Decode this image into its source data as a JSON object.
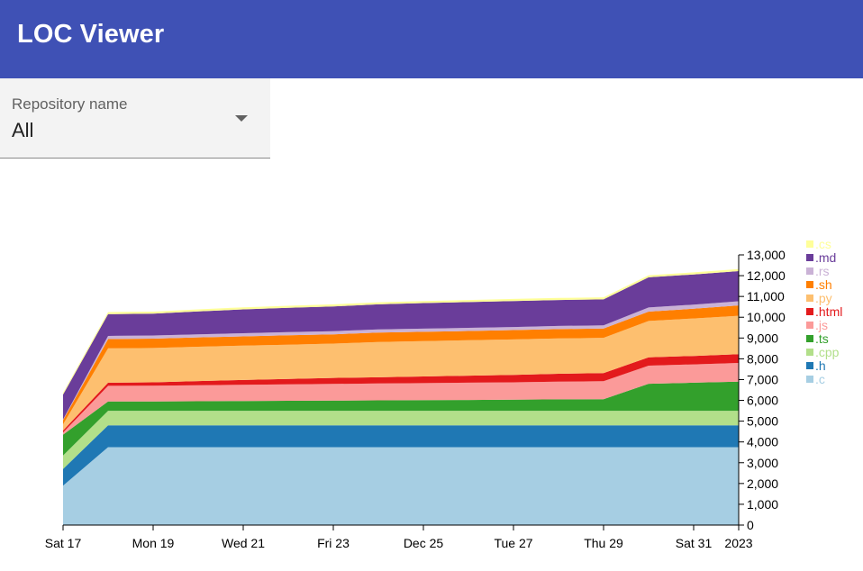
{
  "app": {
    "title": "LOC Viewer"
  },
  "repo_select": {
    "label": "Repository name",
    "value": "All"
  },
  "chart_data": {
    "type": "area",
    "stacked": true,
    "x": [
      "2022-12-17",
      "2022-12-18",
      "2022-12-19",
      "2022-12-20",
      "2022-12-21",
      "2022-12-22",
      "2022-12-23",
      "2022-12-24",
      "2022-12-25",
      "2022-12-26",
      "2022-12-27",
      "2022-12-28",
      "2022-12-29",
      "2022-12-30",
      "2022-12-31",
      "2023-01-01"
    ],
    "x_ticks": [
      "Sat 17",
      "Mon 19",
      "Wed 21",
      "Fri 23",
      "Dec 25",
      "Tue 27",
      "Thu 29",
      "Sat 31",
      "2023"
    ],
    "y_ticks": [
      "0",
      "1,000",
      "2,000",
      "3,000",
      "4,000",
      "5,000",
      "6,000",
      "7,000",
      "8,000",
      "9,000",
      "10,000",
      "11,000",
      "12,000",
      "13,000"
    ],
    "ylim": [
      0,
      13000
    ],
    "legend_position": "right",
    "series": [
      {
        "name": ".c",
        "color": "#a6cee3",
        "values": [
          1900,
          3750,
          3750,
          3750,
          3750,
          3750,
          3750,
          3750,
          3750,
          3750,
          3750,
          3750,
          3750,
          3750,
          3750,
          3750
        ]
      },
      {
        "name": ".h",
        "color": "#1f78b4",
        "values": [
          800,
          1050,
          1050,
          1050,
          1050,
          1050,
          1050,
          1050,
          1050,
          1050,
          1050,
          1050,
          1050,
          1050,
          1050,
          1050
        ]
      },
      {
        "name": ".cpp",
        "color": "#b2df8a",
        "values": [
          650,
          700,
          700,
          700,
          700,
          700,
          700,
          700,
          700,
          700,
          700,
          700,
          700,
          700,
          700,
          700
        ]
      },
      {
        "name": ".ts",
        "color": "#33a02c",
        "values": [
          1000,
          450,
          450,
          460,
          470,
          480,
          490,
          500,
          510,
          520,
          530,
          550,
          560,
          1300,
          1350,
          1400
        ]
      },
      {
        "name": ".js",
        "color": "#fb9a99",
        "values": [
          100,
          750,
          760,
          770,
          780,
          790,
          800,
          810,
          820,
          830,
          840,
          850,
          860,
          870,
          880,
          900
        ]
      },
      {
        "name": ".html",
        "color": "#e31a1c",
        "values": [
          100,
          150,
          160,
          200,
          230,
          260,
          290,
          300,
          320,
          340,
          360,
          380,
          390,
          400,
          410,
          420
        ]
      },
      {
        "name": ".py",
        "color": "#fdbf6f",
        "values": [
          300,
          1650,
          1650,
          1650,
          1650,
          1650,
          1650,
          1700,
          1700,
          1700,
          1700,
          1700,
          1700,
          1750,
          1800,
          1850
        ]
      },
      {
        "name": ".sh",
        "color": "#ff7f00",
        "values": [
          200,
          450,
          450,
          450,
          450,
          450,
          450,
          450,
          450,
          450,
          450,
          450,
          450,
          450,
          470,
          500
        ]
      },
      {
        "name": ".rs",
        "color": "#cab2d6",
        "values": [
          30,
          150,
          150,
          150,
          150,
          150,
          150,
          150,
          150,
          150,
          150,
          150,
          150,
          200,
          200,
          200
        ]
      },
      {
        "name": ".md",
        "color": "#6a3d9a",
        "values": [
          1200,
          1050,
          1050,
          1100,
          1150,
          1170,
          1190,
          1210,
          1230,
          1240,
          1250,
          1250,
          1250,
          1450,
          1450,
          1450
        ]
      },
      {
        "name": ".cs",
        "color": "#ffff99",
        "values": [
          80,
          100,
          100,
          100,
          100,
          100,
          100,
          100,
          100,
          100,
          100,
          100,
          100,
          100,
          100,
          100
        ]
      }
    ]
  }
}
